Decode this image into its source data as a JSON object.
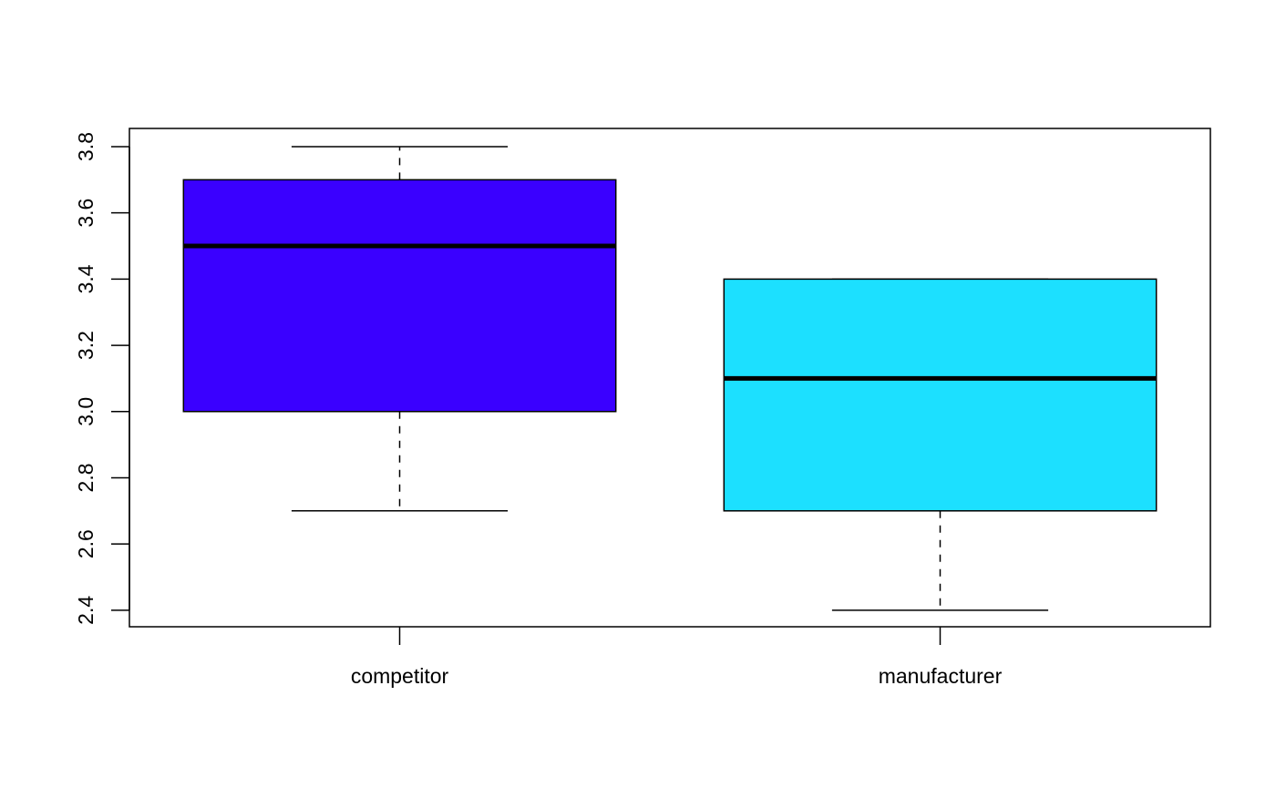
{
  "chart_data": {
    "type": "boxplot",
    "title": "",
    "xlabel": "",
    "ylabel": "",
    "ylim": [
      2.35,
      3.855
    ],
    "yticks": [
      2.4,
      2.6,
      2.8,
      3.0,
      3.2,
      3.4,
      3.6,
      3.8
    ],
    "ytick_labels": [
      "2.4",
      "2.6",
      "2.8",
      "3.0",
      "3.2",
      "3.4",
      "3.6",
      "3.8"
    ],
    "categories": [
      "competitor",
      "manufacturer"
    ],
    "boxes": [
      {
        "name": "competitor",
        "min": 2.7,
        "q1": 3.0,
        "median": 3.5,
        "q3": 3.7,
        "max": 3.8,
        "color": "#3A00FF"
      },
      {
        "name": "manufacturer",
        "min": 2.4,
        "q1": 2.7,
        "median": 3.1,
        "q3": 3.4,
        "max": 3.4,
        "color": "#1CE0FF"
      }
    ]
  }
}
